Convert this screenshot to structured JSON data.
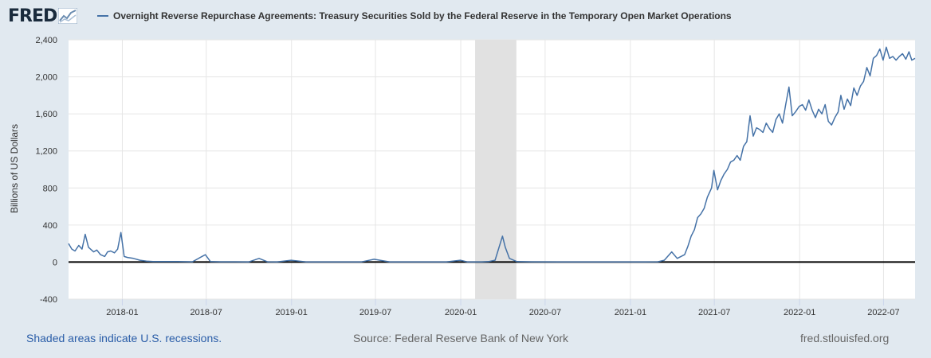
{
  "header": {
    "logo_text": "FRED",
    "series_title": "Overnight Reverse Repurchase Agreements: Treasury Securities Sold by the Federal Reserve in the Temporary Open Market Operations"
  },
  "footer": {
    "recession_note": "Shaded areas indicate U.S. recessions.",
    "source": "Source: Federal Reserve Bank of New York",
    "site": "fred.stlouisfed.org"
  },
  "colors": {
    "line": "#4572a7",
    "recession_shade": "#e1e1e1",
    "page_background": "#e1e9f0",
    "plot_background": "#ffffff",
    "zero_line": "#000000"
  },
  "icons": {
    "logo_graph": "fred-graph-icon"
  },
  "chart_data": {
    "type": "line",
    "title": "Overnight Reverse Repurchase Agreements: Treasury Securities Sold by the Federal Reserve in the Temporary Open Market Operations",
    "xlabel": "",
    "ylabel": "Billions of US Dollars",
    "ylim": [
      -400,
      2400
    ],
    "yticks": [
      -400,
      0,
      400,
      800,
      1200,
      1600,
      2000,
      2400
    ],
    "ytick_labels": [
      "-400",
      "0",
      "400",
      "800",
      "1,200",
      "1,600",
      "2,000",
      "2,400"
    ],
    "xlim": [
      "2017-09-07",
      "2022-09-07"
    ],
    "xticks": [
      "2018-01",
      "2018-07",
      "2019-01",
      "2019-07",
      "2020-01",
      "2020-07",
      "2021-01",
      "2021-07",
      "2022-01",
      "2022-07"
    ],
    "grid": true,
    "recession_shading": [
      [
        "2020-02-01",
        "2020-04-30"
      ]
    ],
    "series": [
      {
        "name": "Overnight Reverse Repurchase Agreements: Treasury Securities Sold by the Federal Reserve in the Temporary Open Market Operations",
        "x": [
          "2017-09-07",
          "2017-09-14",
          "2017-09-21",
          "2017-09-29",
          "2017-10-06",
          "2017-10-13",
          "2017-10-20",
          "2017-10-31",
          "2017-11-07",
          "2017-11-15",
          "2017-11-24",
          "2017-11-30",
          "2017-12-07",
          "2017-12-15",
          "2017-12-22",
          "2017-12-29",
          "2018-01-05",
          "2018-01-12",
          "2018-01-25",
          "2018-02-08",
          "2018-02-22",
          "2018-03-08",
          "2018-04-01",
          "2018-05-01",
          "2018-06-01",
          "2018-06-29",
          "2018-07-10",
          "2018-08-01",
          "2018-09-01",
          "2018-10-01",
          "2018-10-23",
          "2018-11-10",
          "2018-12-01",
          "2018-12-31",
          "2019-02-01",
          "2019-04-01",
          "2019-06-01",
          "2019-06-28",
          "2019-08-01",
          "2019-10-01",
          "2019-12-01",
          "2019-12-31",
          "2020-01-15",
          "2020-02-15",
          "2020-03-01",
          "2020-03-15",
          "2020-03-31",
          "2020-04-06",
          "2020-04-15",
          "2020-05-01",
          "2020-06-01",
          "2020-08-01",
          "2020-10-01",
          "2020-12-01",
          "2021-02-01",
          "2021-03-01",
          "2021-03-15",
          "2021-03-31",
          "2021-04-12",
          "2021-04-20",
          "2021-04-28",
          "2021-05-05",
          "2021-05-12",
          "2021-05-19",
          "2021-05-26",
          "2021-06-02",
          "2021-06-09",
          "2021-06-16",
          "2021-06-25",
          "2021-06-30",
          "2021-07-08",
          "2021-07-15",
          "2021-07-22",
          "2021-07-29",
          "2021-08-05",
          "2021-08-12",
          "2021-08-19",
          "2021-08-26",
          "2021-09-02",
          "2021-09-09",
          "2021-09-16",
          "2021-09-23",
          "2021-09-30",
          "2021-10-07",
          "2021-10-14",
          "2021-10-21",
          "2021-10-28",
          "2021-11-04",
          "2021-11-11",
          "2021-11-18",
          "2021-11-25",
          "2021-12-02",
          "2021-12-09",
          "2021-12-16",
          "2021-12-23",
          "2021-12-31",
          "2022-01-07",
          "2022-01-14",
          "2022-01-21",
          "2022-01-28",
          "2022-02-04",
          "2022-02-11",
          "2022-02-18",
          "2022-02-25",
          "2022-03-04",
          "2022-03-11",
          "2022-03-18",
          "2022-03-25",
          "2022-03-31",
          "2022-04-07",
          "2022-04-14",
          "2022-04-21",
          "2022-04-28",
          "2022-05-05",
          "2022-05-12",
          "2022-05-19",
          "2022-05-26",
          "2022-06-02",
          "2022-06-09",
          "2022-06-16",
          "2022-06-23",
          "2022-06-30",
          "2022-07-07",
          "2022-07-14",
          "2022-07-21",
          "2022-07-28",
          "2022-08-04",
          "2022-08-11",
          "2022-08-18",
          "2022-08-25",
          "2022-08-31",
          "2022-09-07"
        ],
        "y": [
          200,
          140,
          120,
          180,
          140,
          300,
          160,
          110,
          130,
          80,
          60,
          110,
          120,
          100,
          140,
          320,
          60,
          50,
          40,
          20,
          10,
          5,
          5,
          5,
          3,
          80,
          5,
          3,
          3,
          2,
          40,
          3,
          2,
          20,
          2,
          2,
          2,
          30,
          2,
          2,
          2,
          20,
          2,
          2,
          5,
          20,
          280,
          160,
          40,
          5,
          3,
          2,
          2,
          2,
          2,
          3,
          20,
          110,
          40,
          60,
          80,
          170,
          280,
          350,
          480,
          520,
          580,
          700,
          800,
          990,
          780,
          880,
          950,
          1000,
          1080,
          1100,
          1150,
          1100,
          1250,
          1300,
          1580,
          1360,
          1450,
          1430,
          1400,
          1500,
          1440,
          1400,
          1540,
          1600,
          1500,
          1700,
          1890,
          1580,
          1620,
          1680,
          1700,
          1640,
          1750,
          1640,
          1560,
          1650,
          1600,
          1700,
          1520,
          1480,
          1560,
          1620,
          1800,
          1650,
          1760,
          1690,
          1880,
          1800,
          1900,
          1950,
          2100,
          2010,
          2200,
          2230,
          2300,
          2180,
          2320,
          2200,
          2220,
          2180,
          2220,
          2250,
          2190,
          2270,
          2180,
          2200
        ]
      }
    ]
  }
}
